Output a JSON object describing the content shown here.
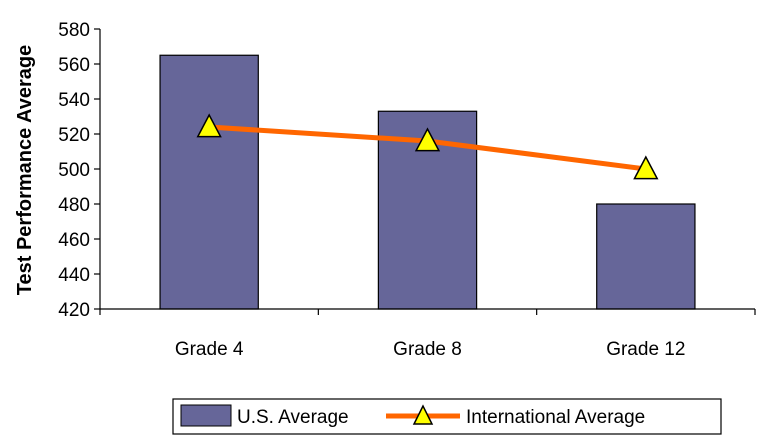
{
  "chart_data": {
    "type": "bar",
    "title": "",
    "xlabel": "",
    "ylabel": "Test Performance Average",
    "ylim": [
      420,
      580
    ],
    "yticks": [
      420,
      440,
      460,
      480,
      500,
      520,
      540,
      560,
      580
    ],
    "categories": [
      "Grade 4",
      "Grade 8",
      "Grade 12"
    ],
    "series": [
      {
        "name": "U.S. Average",
        "type": "bar",
        "values": [
          565,
          533,
          480
        ],
        "color": "#666699"
      },
      {
        "name": "International Average",
        "type": "line",
        "values": [
          524,
          516,
          500
        ],
        "color": "#ff6600",
        "marker": "triangle",
        "marker_color": "#ffff00"
      }
    ],
    "grid": false,
    "legend": "bottom"
  }
}
